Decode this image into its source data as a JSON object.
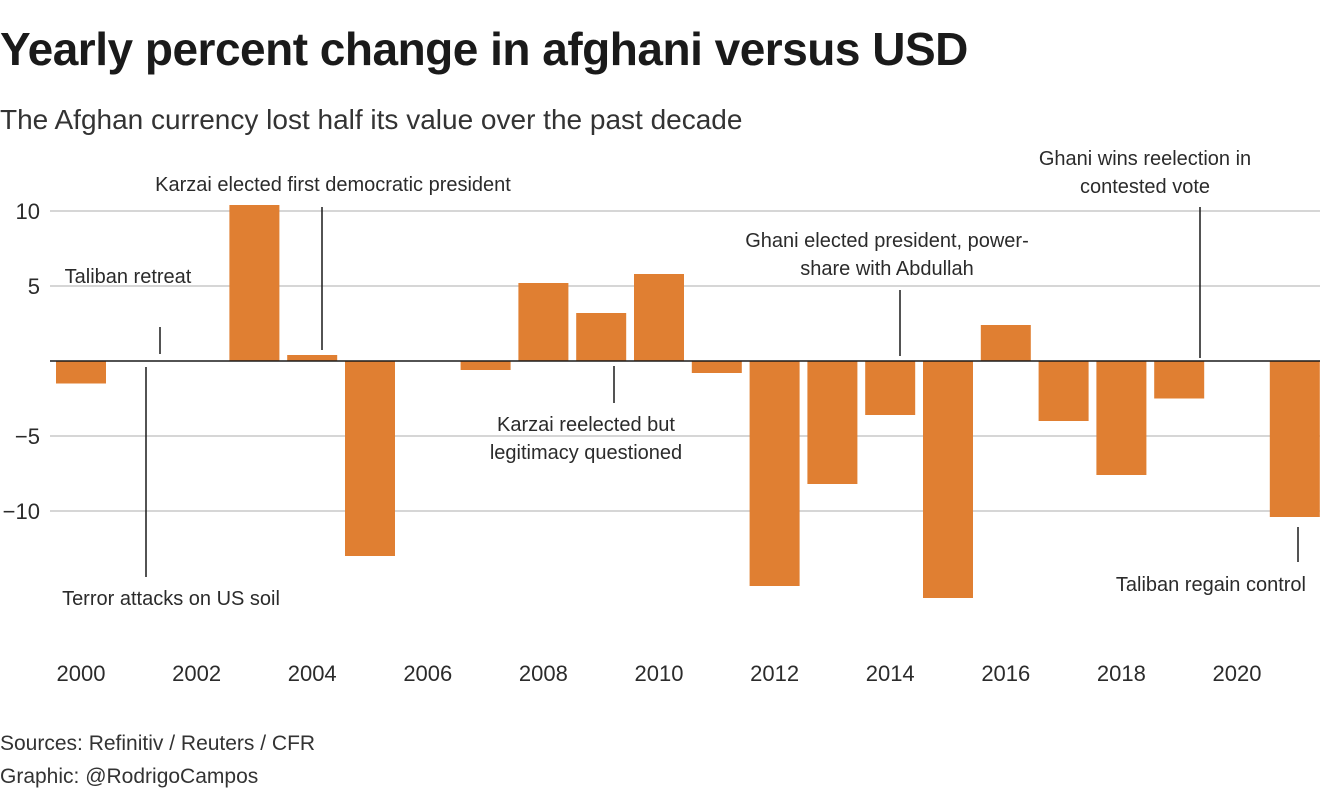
{
  "header": {
    "title": "Yearly percent change in afghani versus USD",
    "subtitle": "The Afghan currency lost half its value over the past decade"
  },
  "footer": {
    "source": "Sources: Refinitiv / Reuters / CFR",
    "credit": "Graphic: @RodrigoCampos"
  },
  "colors": {
    "bar": "#e07f32",
    "grid": "#c8c8c8",
    "axis": "#1a1a1a",
    "text": "#2b2b2b"
  },
  "chart_data": {
    "type": "bar",
    "title": "Yearly percent change in afghani versus USD",
    "subtitle": "The Afghan currency lost half its value over the past decade",
    "x": [
      2000,
      2001,
      2002,
      2003,
      2004,
      2005,
      2006,
      2007,
      2008,
      2009,
      2010,
      2011,
      2012,
      2013,
      2014,
      2015,
      2016,
      2017,
      2018,
      2019,
      2020,
      2021
    ],
    "values": [
      -1.5,
      0,
      0,
      10.4,
      0.4,
      -13.0,
      0,
      -0.6,
      5.2,
      3.2,
      5.8,
      -0.8,
      -15.0,
      -8.2,
      -3.6,
      -15.8,
      2.4,
      -4.0,
      -7.6,
      -2.5,
      0,
      -10.4
    ],
    "xticks": [
      "2000",
      "2002",
      "2004",
      "2006",
      "2008",
      "2010",
      "2012",
      "2014",
      "2016",
      "2018",
      "2020"
    ],
    "yticks": [
      10,
      5,
      -5,
      -10
    ],
    "ytick_labels": [
      "10",
      "5",
      "−5",
      "−10"
    ],
    "ylim": [
      -18,
      12
    ],
    "xlabel": "",
    "ylabel": "",
    "grid": true,
    "legend": "none",
    "annotations": [
      {
        "year": 2001,
        "lines": [
          "Taliban retreat"
        ],
        "position": "above"
      },
      {
        "year": 2001,
        "lines": [
          "Terror attacks on US soil"
        ],
        "position": "below"
      },
      {
        "year": 2004,
        "lines": [
          "Karzai elected first democratic president"
        ],
        "position": "above"
      },
      {
        "year": 2009,
        "lines": [
          "Karzai reelected but",
          "legitimacy questioned"
        ],
        "position": "below"
      },
      {
        "year": 2014,
        "lines": [
          "Ghani elected president, power-",
          "share with Abdullah"
        ],
        "position": "above"
      },
      {
        "year": 2019,
        "lines": [
          "Ghani wins reelection in",
          "contested vote"
        ],
        "position": "above"
      },
      {
        "year": 2021,
        "lines": [
          "Taliban regain control"
        ],
        "position": "below"
      }
    ]
  }
}
